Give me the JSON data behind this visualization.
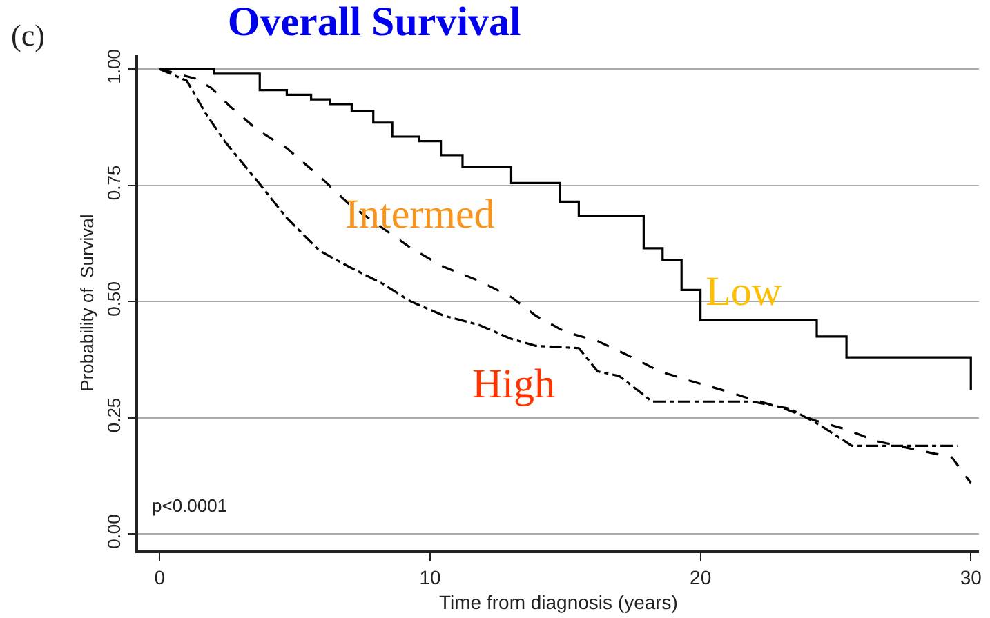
{
  "chart_data": {
    "type": "step",
    "title": "Overall Survival",
    "xlabel": "Time from diagnosis (years)",
    "ylabel": "Probability of  Survival",
    "xlim": [
      -0.8,
      30.3
    ],
    "ylim": [
      -0.035,
      1.03
    ],
    "xticks": [
      0,
      10,
      20,
      30
    ],
    "yticks": [
      {
        "value": 0,
        "label": "0.00"
      },
      {
        "value": 0.25,
        "label": "0.25"
      },
      {
        "value": 0.5,
        "label": "0.50"
      },
      {
        "value": 0.75,
        "label": "0.75"
      },
      {
        "value": 1,
        "label": "1.00"
      }
    ],
    "grid": "y",
    "legend": false,
    "marker": "none",
    "series": [
      {
        "name": "Low",
        "color": "#000000",
        "line_style": "solid",
        "x": [
          0,
          2,
          3.7,
          4.7,
          5.6,
          6.3,
          7.1,
          7.9,
          8.6,
          9.6,
          10.4,
          11.2,
          13,
          14.8,
          15.5,
          17.9,
          18.6,
          19.3,
          20,
          24.3,
          25.4,
          30
        ],
        "values": [
          1,
          0.99,
          0.955,
          0.945,
          0.935,
          0.925,
          0.91,
          0.885,
          0.855,
          0.845,
          0.815,
          0.79,
          0.755,
          0.715,
          0.685,
          0.615,
          0.59,
          0.525,
          0.46,
          0.425,
          0.38,
          0.31
        ]
      },
      {
        "name": "Intermed",
        "type": "line",
        "color": "#000000",
        "line_style": "dashed",
        "x": [
          0,
          1.3,
          1.9,
          2.6,
          3.6,
          4.7,
          5.9,
          7,
          8.2,
          9.3,
          10.5,
          11.8,
          13,
          13.9,
          15,
          16.2,
          17.3,
          18.5,
          19.6,
          20.8,
          21.9,
          23.1,
          24.2,
          25.4,
          26.5,
          29.3,
          30
        ],
        "values": [
          1,
          0.98,
          0.96,
          0.92,
          0.87,
          0.83,
          0.77,
          0.71,
          0.66,
          0.615,
          0.575,
          0.545,
          0.51,
          0.47,
          0.435,
          0.415,
          0.385,
          0.35,
          0.33,
          0.31,
          0.29,
          0.27,
          0.245,
          0.225,
          0.2,
          0.165,
          0.11
        ]
      },
      {
        "name": "High",
        "type": "line",
        "color": "#000000",
        "line_style": "dashdot",
        "x": [
          0,
          1,
          1.7,
          2.4,
          3.6,
          4.7,
          5.9,
          7,
          8.2,
          9.3,
          10.5,
          11.8,
          13,
          13.9,
          15.5,
          16.2,
          17,
          18,
          18.2,
          21.9,
          23.3,
          24.4,
          25.6,
          29.5
        ],
        "values": [
          1,
          0.975,
          0.905,
          0.845,
          0.76,
          0.68,
          0.61,
          0.575,
          0.54,
          0.5,
          0.47,
          0.45,
          0.42,
          0.405,
          0.4,
          0.35,
          0.34,
          0.295,
          0.285,
          0.285,
          0.27,
          0.235,
          0.19,
          0.19
        ]
      }
    ],
    "annotations": [
      "(c)",
      "p<0.0001"
    ]
  }
}
